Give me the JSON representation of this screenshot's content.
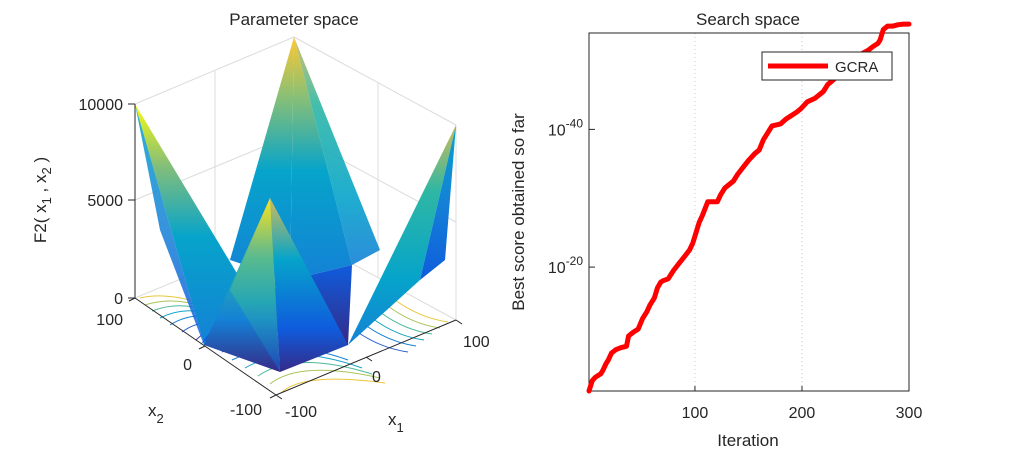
{
  "chart_data": [
    {
      "type": "surface3d",
      "title": "Parameter space",
      "zlabel": "F2( x",
      "zlabel_sub1": "1",
      "zlabel_mid": " , x",
      "zlabel_sub2": "2",
      "zlabel_end": " )",
      "xlabel": "x",
      "xlabel_sub": "1",
      "ylabel": "x",
      "ylabel_sub": "2",
      "x_ticks": [
        "-100",
        "0",
        "100"
      ],
      "y_ticks": [
        "-100",
        "0",
        "100"
      ],
      "z_ticks": [
        "0",
        "5000",
        "10000"
      ],
      "zlim": [
        0,
        10000
      ],
      "xlim": [
        -100,
        100
      ],
      "ylim": [
        -100,
        100
      ],
      "surface_colormap": [
        "#352a87",
        "#0f5cdd",
        "#1481d6",
        "#06a4ca",
        "#2eb7a4",
        "#87bf77",
        "#d1bb59",
        "#fec832",
        "#f9fb0e"
      ],
      "contours": "below surface"
    },
    {
      "type": "line",
      "title": "Search space",
      "xlabel": "Iteration",
      "ylabel": "Best score obtained so far",
      "x_ticks": [
        "100",
        "200",
        "300"
      ],
      "y_ticks": [
        {
          "base": "10",
          "exp": "-20",
          "value": -20
        },
        {
          "base": "10",
          "exp": "-40",
          "value": -40
        }
      ],
      "xlim": [
        1,
        300
      ],
      "ylim_log10": [
        -54,
        -2
      ],
      "yscale": "log",
      "grid": "dotted",
      "legend_position": "top-right",
      "series": [
        {
          "name": "GCRA",
          "color": "#ff0000",
          "points": [
            [
              1,
              -2
            ],
            [
              4,
              -3.5
            ],
            [
              7,
              -4
            ],
            [
              12,
              -4.5
            ],
            [
              14,
              -5
            ],
            [
              17,
              -6
            ],
            [
              19,
              -6.5
            ],
            [
              22,
              -7.5
            ],
            [
              26,
              -8
            ],
            [
              31,
              -8.3
            ],
            [
              36,
              -8.5
            ],
            [
              38,
              -10
            ],
            [
              42,
              -10.5
            ],
            [
              47,
              -11
            ],
            [
              51,
              -12.5
            ],
            [
              55,
              -13.5
            ],
            [
              58,
              -14.5
            ],
            [
              62,
              -15.5
            ],
            [
              65,
              -17
            ],
            [
              68,
              -17.8
            ],
            [
              70,
              -18
            ],
            [
              75,
              -18.3
            ],
            [
              80,
              -19.5
            ],
            [
              85,
              -20.5
            ],
            [
              90,
              -21.5
            ],
            [
              95,
              -22.5
            ],
            [
              98,
              -23.5
            ],
            [
              101,
              -25
            ],
            [
              104,
              -26.5
            ],
            [
              107,
              -27.5
            ],
            [
              112,
              -29.5
            ],
            [
              117,
              -29.5
            ],
            [
              121,
              -29.5
            ],
            [
              124,
              -30.5
            ],
            [
              128,
              -31.5
            ],
            [
              132,
              -32
            ],
            [
              136,
              -32.5
            ],
            [
              140,
              -33.5
            ],
            [
              145,
              -34.5
            ],
            [
              150,
              -35.5
            ],
            [
              156,
              -36.5
            ],
            [
              160,
              -37
            ],
            [
              164,
              -38.5
            ],
            [
              168,
              -39.5
            ],
            [
              172,
              -40.5
            ],
            [
              180,
              -40.8
            ],
            [
              185,
              -41.5
            ],
            [
              190,
              -42
            ],
            [
              195,
              -42.5
            ],
            [
              199,
              -43
            ],
            [
              205,
              -44
            ],
            [
              212,
              -44.5
            ],
            [
              220,
              -45.5
            ],
            [
              224,
              -46.5
            ],
            [
              228,
              -47
            ],
            [
              235,
              -48
            ],
            [
              240,
              -49
            ],
            [
              246,
              -49.2
            ],
            [
              250,
              -50
            ],
            [
              256,
              -51
            ],
            [
              262,
              -51.5
            ],
            [
              266,
              -52
            ],
            [
              271,
              -52.5
            ],
            [
              273,
              -53
            ],
            [
              276,
              -54.5
            ],
            [
              280,
              -55
            ],
            [
              285,
              -55
            ],
            [
              290,
              -55.2
            ],
            [
              295,
              -55.3
            ],
            [
              300,
              -55.3
            ]
          ]
        }
      ]
    }
  ]
}
